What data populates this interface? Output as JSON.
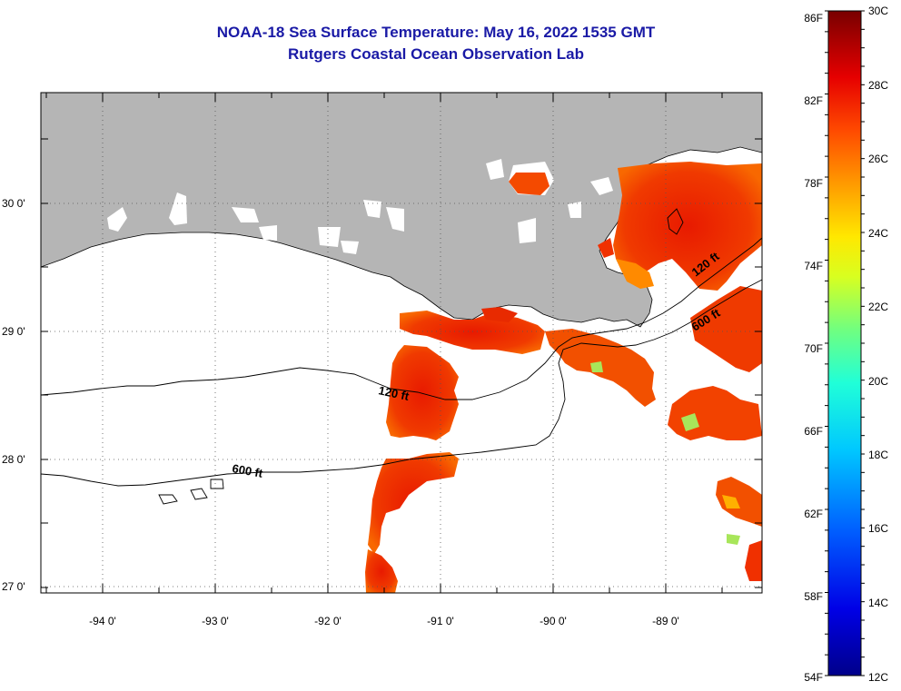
{
  "title": {
    "line1": "NOAA-18 Sea Surface Temperature:  May 16, 2022 1535 GMT",
    "line2": "Rutgers Coastal Ocean Observation Lab"
  },
  "map": {
    "lat_labels": [
      "30 0'",
      "29 0'",
      "28 0'",
      "27 0'"
    ],
    "lon_labels": [
      "-94 0'",
      "-93 0'",
      "-92 0'",
      "-91 0'",
      "-90 0'",
      "-89 0'"
    ],
    "contour_labels": [
      "120 ft",
      "120 ft",
      "600 ft",
      "600 ft"
    ],
    "colors": {
      "land": "#b5b5b5",
      "ocean_nodata": "#ffffff"
    }
  },
  "colorbar": {
    "f_labels": [
      "86F",
      "82F",
      "78F",
      "74F",
      "70F",
      "66F",
      "62F",
      "58F",
      "54F"
    ],
    "c_labels": [
      "30C",
      "28C",
      "26C",
      "24C",
      "22C",
      "20C",
      "18C",
      "16C",
      "14C",
      "12C"
    ],
    "range_c": [
      12,
      30
    ],
    "range_f": [
      54,
      86
    ]
  }
}
